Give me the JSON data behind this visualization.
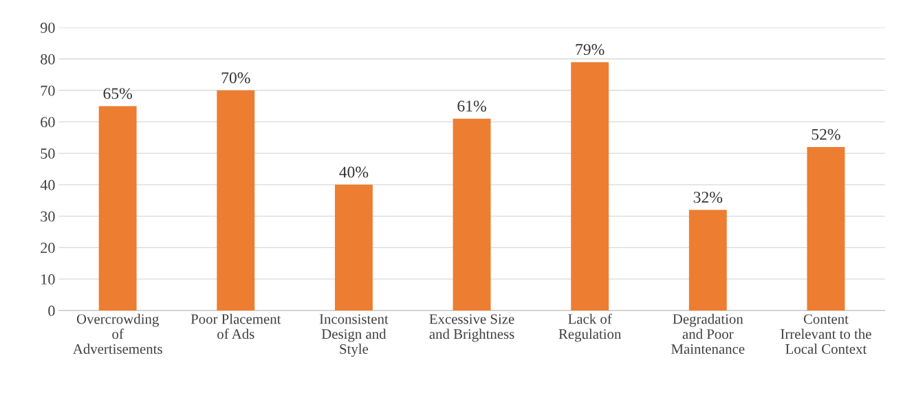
{
  "chart_data": {
    "type": "bar",
    "categories": [
      "Overcrowding\nof\nAdvertisements",
      "Poor Placement\nof Ads",
      "Inconsistent\nDesign and\nStyle",
      "Excessive Size\nand Brightness",
      "Lack of\nRegulation",
      "Degradation\nand Poor\nMaintenance",
      "Content\nIrrelevant to the\nLocal Context"
    ],
    "values": [
      65,
      70,
      40,
      61,
      79,
      32,
      52
    ],
    "value_labels": [
      "65%",
      "70%",
      "40%",
      "61%",
      "79%",
      "32%",
      "52%"
    ],
    "color": "#ed7d31",
    "ylim": [
      0,
      90
    ],
    "yticks": [
      0,
      10,
      20,
      30,
      40,
      50,
      60,
      70,
      80,
      90
    ],
    "grid": "y",
    "legend": false
  }
}
